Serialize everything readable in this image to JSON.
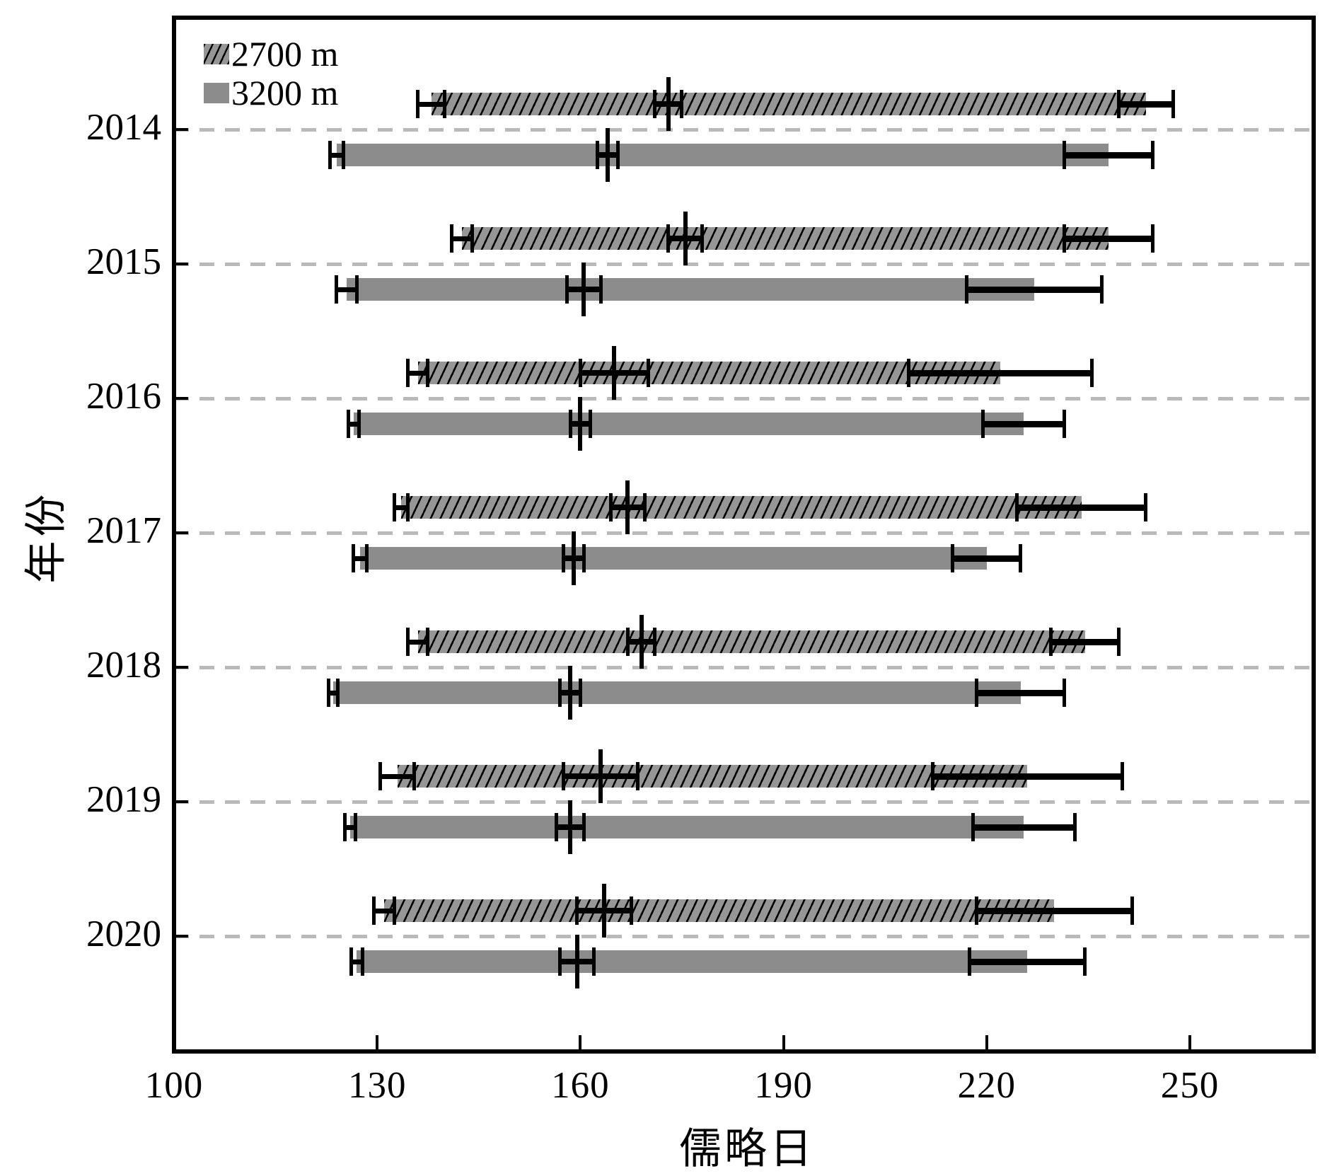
{
  "chart_data": {
    "type": "bar",
    "orientation": "horizontal",
    "description": "Horizontal interval (phenology period) bars per year for two elevations, each with error bars at the start, middle and end dates (Julian day).",
    "title": "",
    "xlabel": "儒略日",
    "ylabel": "年份",
    "xlim": [
      100,
      268
    ],
    "xticks": [
      100,
      130,
      160,
      190,
      220,
      250
    ],
    "years": [
      "2014",
      "2015",
      "2016",
      "2017",
      "2018",
      "2019",
      "2020"
    ],
    "grid": "dashed-horizontal",
    "legend_position": "top-left-inside",
    "legend": [
      {
        "label": "2700 m",
        "style": "hatched"
      },
      {
        "label": "3200 m",
        "style": "solid"
      }
    ],
    "colors": {
      "bar_fill": "#8c8c8c",
      "hatch": "#000000",
      "error_bar": "#000000",
      "gridline": "#b9b9b9",
      "frame": "#000000",
      "background": "#ffffff"
    },
    "series": [
      {
        "name": "2700 m",
        "style": "hatched",
        "rows": [
          {
            "year": "2014",
            "start": {
              "value": 138.0,
              "err": 2.0
            },
            "mid": {
              "value": 173.0,
              "err": 2.0
            },
            "end": {
              "value": 243.5,
              "err": 4.0
            }
          },
          {
            "year": "2015",
            "start": {
              "value": 142.5,
              "err": 1.5
            },
            "mid": {
              "value": 175.5,
              "err": 2.5
            },
            "end": {
              "value": 238.0,
              "err": 6.5
            }
          },
          {
            "year": "2016",
            "start": {
              "value": 136.0,
              "err": 1.5
            },
            "mid": {
              "value": 165.0,
              "err": 5.0
            },
            "end": {
              "value": 222.0,
              "err": 13.5
            }
          },
          {
            "year": "2017",
            "start": {
              "value": 133.5,
              "err": 1.0
            },
            "mid": {
              "value": 167.0,
              "err": 2.5
            },
            "end": {
              "value": 234.0,
              "err": 9.5
            }
          },
          {
            "year": "2018",
            "start": {
              "value": 136.0,
              "err": 1.5
            },
            "mid": {
              "value": 169.0,
              "err": 2.0
            },
            "end": {
              "value": 234.5,
              "err": 5.0
            }
          },
          {
            "year": "2019",
            "start": {
              "value": 133.0,
              "err": 2.5
            },
            "mid": {
              "value": 163.0,
              "err": 5.5
            },
            "end": {
              "value": 226.0,
              "err": 14.0
            }
          },
          {
            "year": "2020",
            "start": {
              "value": 131.0,
              "err": 1.5
            },
            "mid": {
              "value": 163.5,
              "err": 4.0
            },
            "end": {
              "value": 230.0,
              "err": 11.5
            }
          }
        ]
      },
      {
        "name": "3200 m",
        "style": "solid",
        "rows": [
          {
            "year": "2014",
            "start": {
              "value": 124.0,
              "err": 1.0
            },
            "mid": {
              "value": 164.0,
              "err": 1.5
            },
            "end": {
              "value": 238.0,
              "err": 6.5
            }
          },
          {
            "year": "2015",
            "start": {
              "value": 125.5,
              "err": 1.5
            },
            "mid": {
              "value": 160.5,
              "err": 2.5
            },
            "end": {
              "value": 227.0,
              "err": 10.0
            }
          },
          {
            "year": "2016",
            "start": {
              "value": 126.5,
              "err": 0.8
            },
            "mid": {
              "value": 160.0,
              "err": 1.5
            },
            "end": {
              "value": 225.5,
              "err": 6.0
            }
          },
          {
            "year": "2017",
            "start": {
              "value": 127.5,
              "err": 1.0
            },
            "mid": {
              "value": 159.0,
              "err": 1.5
            },
            "end": {
              "value": 220.0,
              "err": 5.0
            }
          },
          {
            "year": "2018",
            "start": {
              "value": 123.5,
              "err": 0.7
            },
            "mid": {
              "value": 158.5,
              "err": 1.5
            },
            "end": {
              "value": 225.0,
              "err": 6.5
            }
          },
          {
            "year": "2019",
            "start": {
              "value": 126.0,
              "err": 0.8
            },
            "mid": {
              "value": 158.5,
              "err": 2.0
            },
            "end": {
              "value": 225.5,
              "err": 7.5
            }
          },
          {
            "year": "2020",
            "start": {
              "value": 127.0,
              "err": 0.8
            },
            "mid": {
              "value": 159.5,
              "err": 2.5
            },
            "end": {
              "value": 226.0,
              "err": 8.5
            }
          }
        ]
      }
    ]
  }
}
